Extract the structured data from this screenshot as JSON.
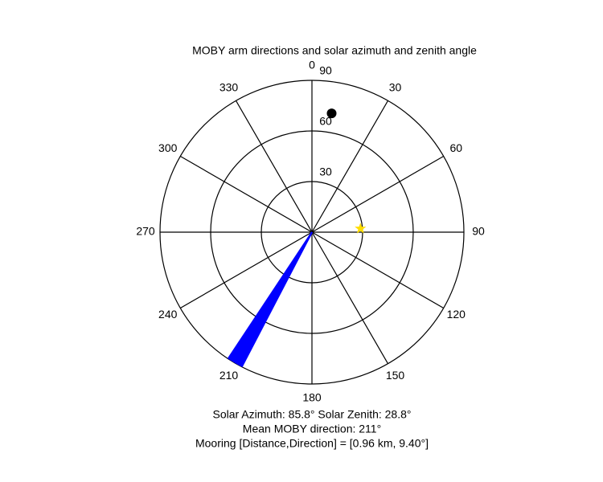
{
  "chart_data": {
    "type": "polar",
    "title": "MOBY arm directions and solar azimuth and zenith angle",
    "theta_ticks": [
      0,
      30,
      60,
      90,
      120,
      150,
      180,
      210,
      240,
      270,
      300,
      330
    ],
    "rlim": [
      0,
      90
    ],
    "rticks": [
      30,
      60,
      90
    ],
    "series": [
      {
        "color": "#0000ff",
        "marker": "line",
        "theta": [
          207.5,
          208,
          208.5,
          209,
          209.5,
          210,
          210.5,
          211,
          211.5,
          212,
          212.5,
          213,
          213.5
        ],
        "r": [
          90,
          90,
          90,
          90,
          90,
          90,
          90,
          90,
          90,
          90,
          90,
          90,
          90
        ]
      },
      {
        "color": "#ffdd00",
        "marker": "star",
        "theta": [
          85.8
        ],
        "r": [
          28.8
        ]
      },
      {
        "color": "#000000",
        "marker": "circle",
        "theta": [
          9.4
        ],
        "r": [
          71.4
        ]
      }
    ],
    "annotations": [
      "Solar Azimuth: 85.8°   Solar Zenith: 28.8°",
      "Mean MOBY direction: 211°",
      "Mooring [Distance,Direction] = [0.96 km, 9.40°]"
    ]
  }
}
